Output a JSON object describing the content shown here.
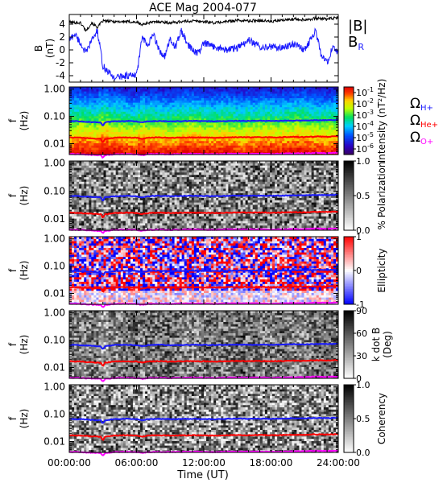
{
  "title": "ACE Mag 2004-077",
  "x_axis": {
    "label": "Time (UT)",
    "ticks": [
      "00:00:00",
      "06:00:00",
      "12:00:00",
      "18:00:00",
      "24:00:00"
    ],
    "range_hours": [
      0,
      24
    ]
  },
  "colors": {
    "b_total": "#000000",
    "b_r": "#1a1aff",
    "omega_h": "#1a1aff",
    "omega_he": "#ff0000",
    "omega_o": "#ff00ff"
  },
  "chart_data": [
    {
      "type": "line",
      "ylabel_top": "B",
      "ylabel_bottom": "(nT)",
      "ylim": [
        -5,
        5.5
      ],
      "yticks": [
        "4",
        "2",
        "0",
        "-2",
        "-4"
      ],
      "ytick_values": [
        4,
        2,
        0,
        -2,
        -4
      ],
      "legend": [
        {
          "name": "|B|",
          "color": "#000000"
        },
        {
          "name": "B",
          "sub": "R",
          "color": "#1a1aff"
        }
      ],
      "series": [
        {
          "key": "b_total",
          "x": [
            0,
            1,
            1.5,
            2,
            2.5,
            3,
            4,
            5,
            6,
            6.5,
            7,
            8,
            9,
            10,
            11,
            12,
            13,
            14,
            15,
            16,
            17,
            18,
            19,
            20,
            21,
            22,
            23,
            24
          ],
          "values": [
            4.3,
            4.2,
            3.0,
            4.2,
            3.5,
            4.5,
            4.4,
            4.4,
            4.3,
            3.9,
            4.2,
            4.4,
            4.2,
            4.4,
            4.5,
            4.4,
            4.2,
            4.4,
            4.6,
            4.5,
            4.6,
            4.4,
            4.6,
            4.8,
            4.7,
            4.9,
            4.8,
            5.0
          ]
        },
        {
          "key": "b_r",
          "x": [
            0,
            0.5,
            1,
            1.5,
            2,
            2.5,
            3,
            3.5,
            4,
            5,
            6,
            6.5,
            7,
            7.5,
            8,
            8.5,
            9,
            9.5,
            10,
            10.5,
            11,
            11.5,
            12,
            13,
            14,
            15,
            16,
            17,
            18,
            19,
            20,
            21,
            22,
            22.5,
            23,
            23.5,
            24
          ],
          "values": [
            1.5,
            2.5,
            1.0,
            -0.5,
            1.5,
            3.0,
            -2.5,
            -3.5,
            -4.3,
            -4.0,
            -4.0,
            2.0,
            0.5,
            2.5,
            0.0,
            -1.0,
            1.5,
            0.5,
            3.0,
            1.0,
            0.0,
            -0.5,
            1.0,
            0.5,
            0.0,
            0.3,
            1.5,
            0.5,
            0.5,
            0.3,
            1.0,
            0.0,
            3.0,
            -1.0,
            -2.0,
            0.5,
            -0.5
          ]
        }
      ]
    },
    {
      "type": "heatmap",
      "ylabel_top": "f",
      "ylabel_bottom": "(Hz)",
      "yscale": "log",
      "ylim": [
        0.004,
        1.2
      ],
      "yticks": [
        "1.00",
        "0.10",
        "0.01"
      ],
      "ytick_values": [
        1,
        0.1,
        0.01
      ],
      "colorbar": {
        "label": "Intensity (nT²/Hz)",
        "ticks": [
          {
            "base": "10",
            "exp": "-1"
          },
          {
            "base": "10",
            "exp": "-2"
          },
          {
            "base": "10",
            "exp": "-3"
          },
          {
            "base": "10",
            "exp": "-4"
          },
          {
            "base": "10",
            "exp": "-5"
          },
          {
            "base": "10",
            "exp": "-6"
          }
        ],
        "tick_values_log10": [
          -1,
          -2,
          -3,
          -4,
          -5,
          -6
        ],
        "range_log10": [
          -6.5,
          -0.5
        ],
        "colormap": "rainbow"
      },
      "legend": [
        {
          "name": "Ω",
          "sub": "H+",
          "color": "#1a1aff"
        },
        {
          "name": "Ω",
          "sub": "He+",
          "color": "#ff0000"
        },
        {
          "name": "Ω",
          "sub": "O+",
          "color": "#ff00ff"
        }
      ]
    },
    {
      "type": "heatmap",
      "ylabel_top": "f",
      "ylabel_bottom": "(Hz)",
      "yscale": "log",
      "colorbar": {
        "label": "% Polarization",
        "ticks": [
          "1.0",
          "0.5",
          "0.0"
        ],
        "tick_values": [
          1,
          0.5,
          0
        ],
        "range": [
          0,
          1
        ],
        "colormap": "gray_reversed"
      }
    },
    {
      "type": "heatmap",
      "ylabel_top": "f",
      "ylabel_bottom": "(Hz)",
      "yscale": "log",
      "colorbar": {
        "label": "Ellipticity",
        "ticks": [
          "1",
          "0",
          "-1"
        ],
        "tick_values": [
          1,
          0,
          -1
        ],
        "range": [
          -1,
          1
        ],
        "colormap": "blue_white_red"
      }
    },
    {
      "type": "heatmap",
      "ylabel_top": "f",
      "ylabel_bottom": "(Hz)",
      "yscale": "log",
      "colorbar": {
        "label_top": "k dot B",
        "label_bottom": "(Deg)",
        "ticks": [
          "90",
          "60",
          "30",
          "0"
        ],
        "tick_values": [
          90,
          60,
          30,
          0
        ],
        "range": [
          0,
          90
        ],
        "colormap": "gray_reversed"
      }
    },
    {
      "type": "heatmap",
      "ylabel_top": "f",
      "ylabel_bottom": "(Hz)",
      "yscale": "log",
      "colorbar": {
        "label": "Coherency",
        "ticks": [
          "1.0",
          "0.5",
          "0.0"
        ],
        "tick_values": [
          1,
          0.5,
          0
        ],
        "range": [
          0,
          1
        ],
        "colormap": "gray_reversed"
      }
    }
  ],
  "gyro_lines": {
    "x": [
      0,
      1,
      2,
      2.8,
      3.0,
      3.2,
      4,
      5,
      6,
      6.5,
      7,
      8,
      9,
      10,
      11,
      12,
      13,
      14,
      15,
      16,
      17,
      18,
      19,
      20,
      21,
      22,
      23,
      24
    ],
    "omega_h": [
      0.067,
      0.066,
      0.062,
      0.06,
      0.045,
      0.06,
      0.066,
      0.068,
      0.066,
      0.06,
      0.066,
      0.068,
      0.066,
      0.067,
      0.068,
      0.067,
      0.066,
      0.068,
      0.069,
      0.068,
      0.069,
      0.068,
      0.069,
      0.071,
      0.07,
      0.073,
      0.072,
      0.075
    ],
    "omega_he": [
      0.017,
      0.0165,
      0.0155,
      0.015,
      0.011,
      0.015,
      0.0165,
      0.017,
      0.0165,
      0.015,
      0.0165,
      0.017,
      0.0165,
      0.0168,
      0.017,
      0.0168,
      0.0165,
      0.017,
      0.0173,
      0.017,
      0.0173,
      0.017,
      0.0173,
      0.0178,
      0.0175,
      0.0183,
      0.018,
      0.0188
    ],
    "omega_o": [
      0.0042,
      0.0041,
      0.0039,
      0.0038,
      0.003,
      0.0038,
      0.0041,
      0.0042,
      0.0041,
      0.0038,
      0.0041,
      0.0042,
      0.0041,
      0.0042,
      0.0043,
      0.0042,
      0.0041,
      0.0043,
      0.0043,
      0.0043,
      0.0043,
      0.0042,
      0.0043,
      0.0044,
      0.0044,
      0.0046,
      0.0045,
      0.0047
    ]
  }
}
